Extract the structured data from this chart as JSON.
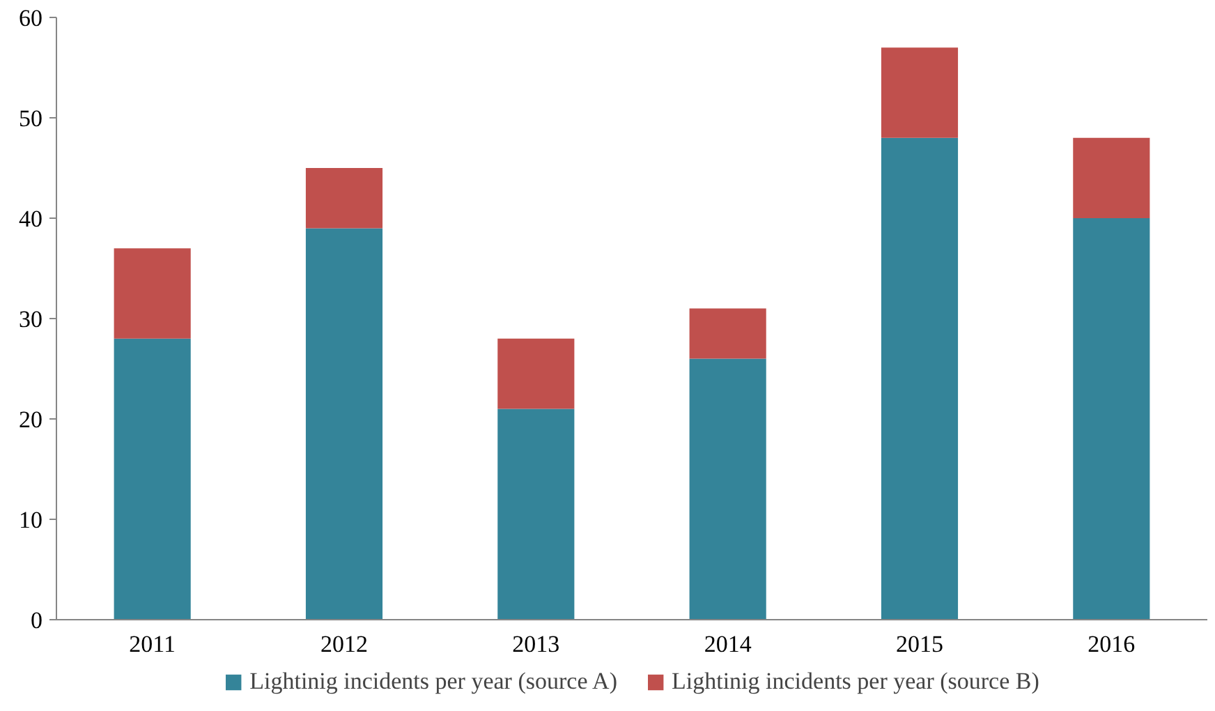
{
  "chart_data": {
    "type": "bar",
    "stacked": true,
    "categories": [
      "2011",
      "2012",
      "2013",
      "2014",
      "2015",
      "2016"
    ],
    "series": [
      {
        "name": "Lightinig incidents per year (source A)",
        "color": "#348499",
        "values": [
          28,
          39,
          21,
          26,
          48,
          40
        ]
      },
      {
        "name": "Lightinig incidents per year (source B)",
        "color": "#c0504d",
        "values": [
          9,
          6,
          7,
          5,
          9,
          8
        ]
      }
    ],
    "ylim": [
      0,
      60
    ],
    "yticks": [
      0,
      10,
      20,
      30,
      40,
      50,
      60
    ],
    "grid": false,
    "legend": "bottom"
  }
}
